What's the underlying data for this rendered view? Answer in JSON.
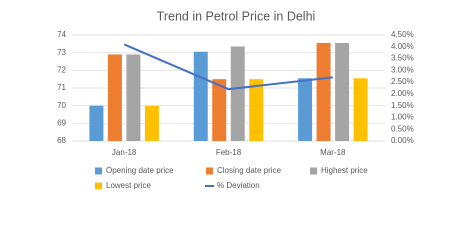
{
  "chart_data": {
    "type": "bar",
    "title": "Trend in Petrol Price in Delhi",
    "categories": [
      "Jan-18",
      "Feb-18",
      "Mar-18"
    ],
    "series": [
      {
        "name": "Opening date price",
        "color": "#5b9bd5",
        "values": [
          70.0,
          73.05,
          71.55
        ]
      },
      {
        "name": "Closing date price",
        "color": "#ed7d31",
        "values": [
          72.9,
          71.5,
          73.55
        ]
      },
      {
        "name": "Highest price",
        "color": "#a5a5a5",
        "values": [
          72.9,
          73.35,
          73.55
        ]
      },
      {
        "name": "Lowest price",
        "color": "#ffc000",
        "values": [
          70.0,
          71.5,
          71.55
        ]
      },
      {
        "name": "% Deviation",
        "color": "#4472c4",
        "type": "line",
        "axis": "y2",
        "values": [
          4.1,
          2.2,
          2.7
        ]
      }
    ],
    "ylim": [
      68,
      74
    ],
    "yticks": [
      68,
      69,
      70,
      71,
      72,
      73,
      74
    ],
    "y2lim": [
      0,
      4.5
    ],
    "y2ticks": [
      {
        "value": 0,
        "label": "0.00%"
      },
      {
        "value": 0.5,
        "label": "0.50%"
      },
      {
        "value": 1,
        "label": "1.00%"
      },
      {
        "value": 1.5,
        "label": "1.50%"
      },
      {
        "value": 2,
        "label": "2.00%"
      },
      {
        "value": 2.5,
        "label": "2.50%"
      },
      {
        "value": 3,
        "label": "3.00%"
      },
      {
        "value": 3.5,
        "label": "3.50%"
      },
      {
        "value": 4,
        "label": "4.00%"
      },
      {
        "value": 4.5,
        "label": "4.50%"
      }
    ],
    "grid": true
  }
}
